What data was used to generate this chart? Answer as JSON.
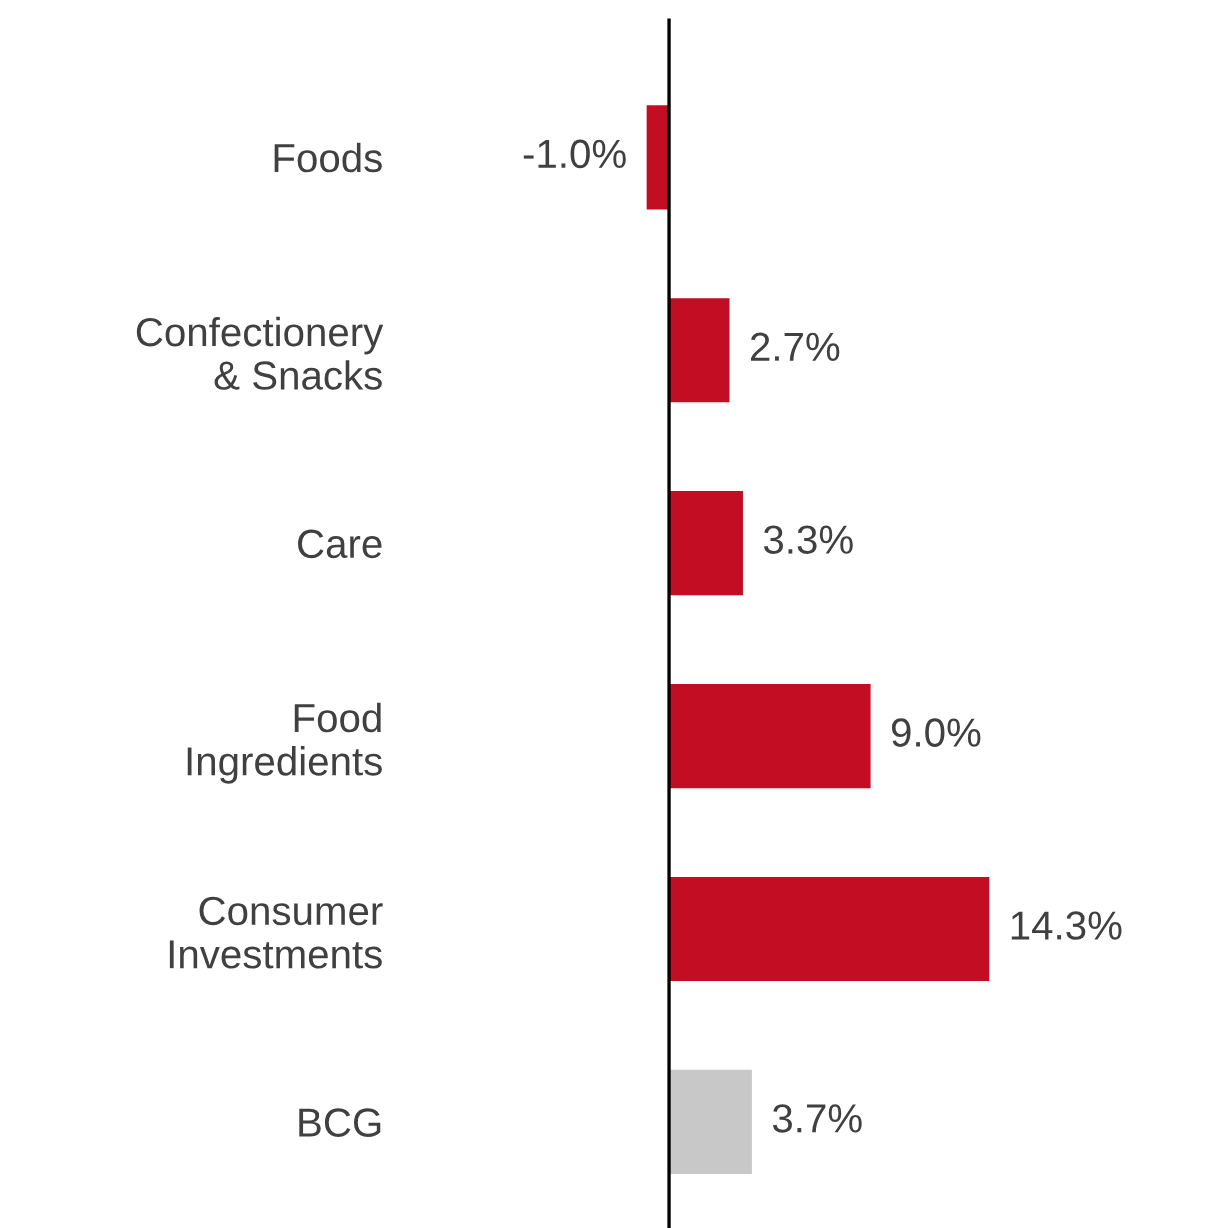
{
  "chart_data": {
    "type": "bar",
    "orientation": "horizontal",
    "categories": [
      "Foods",
      "Confectionery\n& Snacks",
      "Care",
      "Food\nIngredients",
      "Consumer\nInvestments",
      "BCG"
    ],
    "values": [
      -1.0,
      2.7,
      3.3,
      9.0,
      14.3,
      3.7
    ],
    "colors": [
      "#c30d22",
      "#c30d22",
      "#c30d22",
      "#c30d22",
      "#c30d22",
      "#c8c8c8"
    ],
    "value_labels": [
      "-1.0%",
      "2.7%",
      "3.3%",
      "9.0%",
      "14.3%",
      "3.7%"
    ],
    "grid": false,
    "legend": false
  }
}
